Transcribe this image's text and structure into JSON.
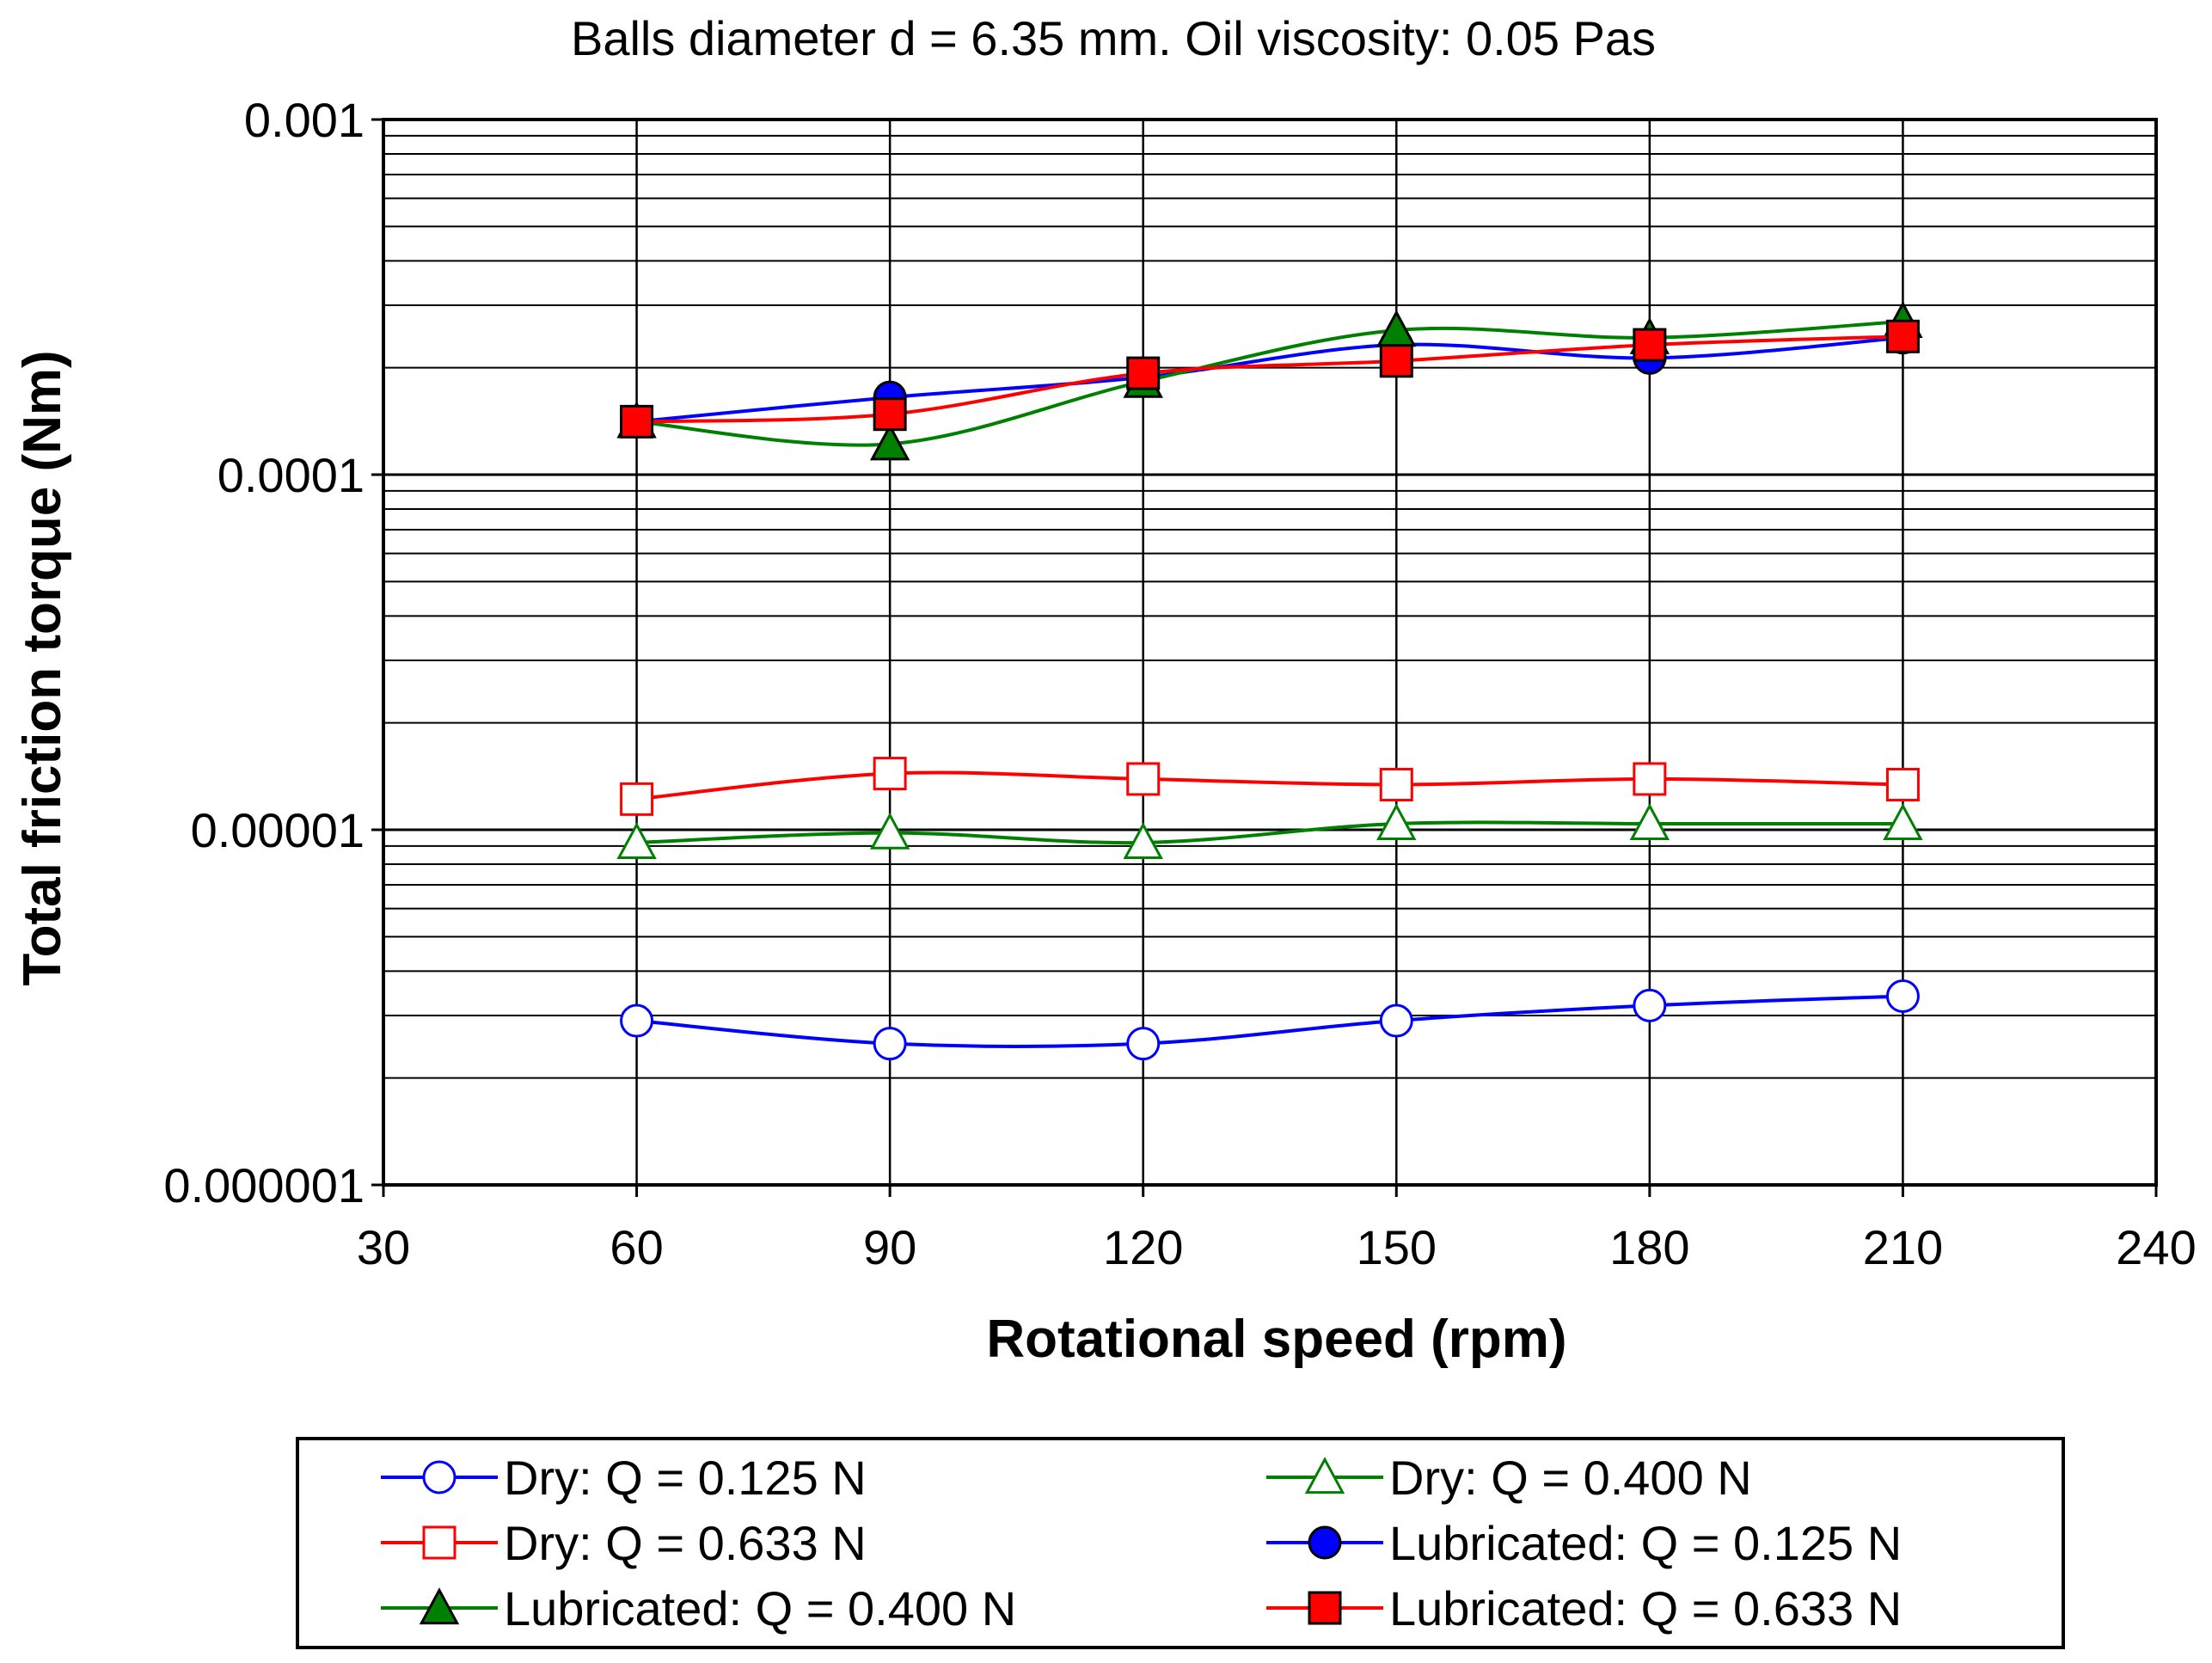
{
  "chart_data": {
    "type": "line",
    "title": "Balls diameter d = 6.35 mm.  Oil viscosity: 0.05 Pas",
    "xlabel": "Rotational speed (rpm)",
    "ylabel": "Total friction torque (Nm)",
    "x_scale": "linear",
    "y_scale": "log",
    "xlim": [
      30,
      240
    ],
    "ylim": [
      1e-06,
      0.001
    ],
    "x_ticks": [
      30,
      60,
      90,
      120,
      150,
      180,
      210,
      240
    ],
    "x_tick_labels": [
      "30",
      "60",
      "90",
      "120",
      "150",
      "180",
      "210",
      "240"
    ],
    "y_ticks": [
      1e-06,
      1e-05,
      0.0001,
      0.001
    ],
    "y_tick_labels": [
      "0.000001",
      "0.00001",
      "0.0001",
      "0.001"
    ],
    "grid": "horizontal major and minor gridlines, vertical gridlines at x ticks",
    "legend_position": "bottom",
    "x": [
      60,
      90,
      120,
      150,
      180,
      210
    ],
    "series": [
      {
        "name": "Dry: Q = 0.125 N",
        "color": "#0000ff",
        "marker": "circle",
        "filled": false,
        "values": [
          2.9e-06,
          2.5e-06,
          2.5e-06,
          2.9e-06,
          3.2e-06,
          3.4e-06
        ]
      },
      {
        "name": "Dry: Q = 0.400 N",
        "color": "#008000",
        "marker": "triangle",
        "filled": false,
        "values": [
          9.2e-06,
          9.8e-06,
          9.2e-06,
          1.04e-05,
          1.04e-05,
          1.04e-05
        ]
      },
      {
        "name": "Dry: Q = 0.633 N",
        "color": "#ff0000",
        "marker": "square",
        "filled": false,
        "values": [
          1.22e-05,
          1.44e-05,
          1.39e-05,
          1.34e-05,
          1.39e-05,
          1.34e-05
        ]
      },
      {
        "name": "Lubricated: Q = 0.125 N",
        "color": "#0000ff",
        "marker": "circle",
        "filled": true,
        "values": [
          0.000141,
          0.000165,
          0.000188,
          0.000232,
          0.000213,
          0.000243
        ]
      },
      {
        "name": "Lubricated: Q = 0.400 N",
        "color": "#008000",
        "marker": "triangle",
        "filled": true,
        "values": [
          0.000141,
          0.000122,
          0.000183,
          0.000255,
          0.000243,
          0.00027
        ]
      },
      {
        "name": "Lubricated: Q = 0.633 N",
        "color": "#ff0000",
        "marker": "square",
        "filled": true,
        "values": [
          0.000141,
          0.000148,
          0.000193,
          0.000209,
          0.000232,
          0.000245
        ]
      }
    ]
  }
}
